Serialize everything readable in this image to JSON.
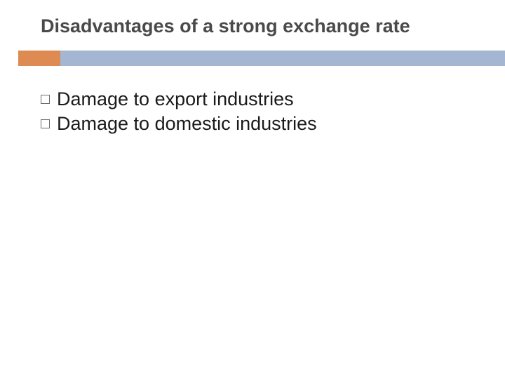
{
  "title": {
    "text": "Disadvantages of a strong exchange rate",
    "fontsize": 27,
    "color": "#4a4a4a"
  },
  "divider": {
    "accent_color": "#dd8b52",
    "bar_color": "#a3b7d2"
  },
  "bullets": {
    "items": [
      {
        "text": "Damage to export industries"
      },
      {
        "text": "Damage to domestic industries"
      }
    ],
    "fontsize": 27,
    "text_color": "#1a1a1a",
    "marker_border_color": "#6a6a6a"
  },
  "background_color": "#ffffff"
}
